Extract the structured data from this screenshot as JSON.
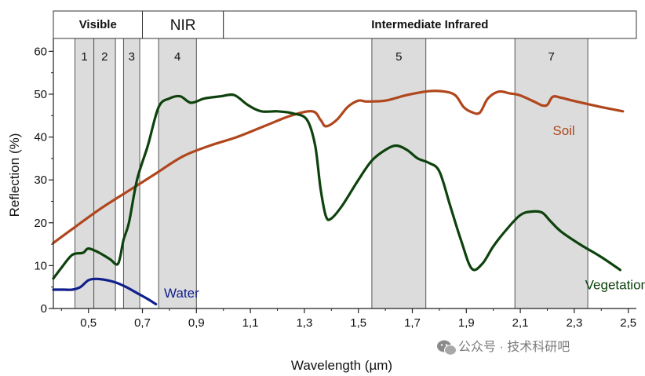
{
  "chart_data": {
    "type": "line",
    "title": "",
    "xlabel": "Wavelength (µm)",
    "ylabel": "Reflection (%)",
    "xlim": [
      0.37,
      2.53
    ],
    "ylim": [
      0,
      63
    ],
    "x_ticks": [
      0.5,
      0.7,
      0.9,
      1.1,
      1.3,
      1.5,
      1.7,
      1.9,
      2.1,
      2.3,
      2.5
    ],
    "x_tick_labels": [
      "0,5",
      "0,7",
      "0,9",
      "1,1",
      "1,3",
      "1,5",
      "1,7",
      "1,9",
      "2,1",
      "2,3",
      "2,5"
    ],
    "y_ticks": [
      0,
      10,
      20,
      30,
      40,
      50,
      60
    ],
    "y_tick_labels": [
      "0",
      "10",
      "20",
      "30",
      "40",
      "50",
      "60"
    ],
    "regions": [
      {
        "label": "Visible",
        "x_start": 0.37,
        "x_end": 0.7,
        "style": "bold"
      },
      {
        "label": "NIR",
        "x_start": 0.7,
        "x_end": 1.0,
        "style": "plain"
      },
      {
        "label": "Intermediate Infrared",
        "x_start": 1.0,
        "x_end": 2.53,
        "style": "bold"
      }
    ],
    "bands": [
      {
        "label": "1",
        "x_start": 0.45,
        "x_end": 0.52
      },
      {
        "label": "2",
        "x_start": 0.52,
        "x_end": 0.6
      },
      {
        "label": "3",
        "x_start": 0.63,
        "x_end": 0.69
      },
      {
        "label": "4",
        "x_start": 0.76,
        "x_end": 0.9
      },
      {
        "label": "5",
        "x_start": 1.55,
        "x_end": 1.75
      },
      {
        "label": "7",
        "x_start": 2.08,
        "x_end": 2.35
      }
    ],
    "series": [
      {
        "name": "Soil",
        "color": "#b0461c",
        "label_at": [
          2.22,
          40.5
        ],
        "x": [
          0.37,
          0.45,
          0.55,
          0.65,
          0.75,
          0.85,
          0.95,
          1.05,
          1.15,
          1.25,
          1.33,
          1.36,
          1.38,
          1.42,
          1.46,
          1.5,
          1.53,
          1.6,
          1.68,
          1.76,
          1.82,
          1.86,
          1.89,
          1.92,
          1.95,
          1.98,
          2.02,
          2.06,
          2.1,
          2.16,
          2.18,
          2.2,
          2.22,
          2.25,
          2.3,
          2.4,
          2.48
        ],
        "y": [
          15.3,
          19.0,
          23.5,
          27.5,
          31.5,
          35.5,
          38.0,
          40.0,
          42.5,
          45.0,
          46.0,
          44.0,
          42.5,
          44.0,
          47.0,
          48.5,
          48.3,
          48.5,
          49.8,
          50.7,
          50.6,
          49.7,
          47.0,
          45.8,
          45.7,
          49.0,
          50.6,
          50.2,
          49.7,
          48.0,
          47.4,
          47.5,
          49.4,
          49.2,
          48.4,
          47.0,
          46.0
        ]
      },
      {
        "name": "Vegetation",
        "color": "#0d420d",
        "label_at": [
          2.34,
          4.5
        ],
        "x": [
          0.37,
          0.4,
          0.44,
          0.48,
          0.5,
          0.54,
          0.58,
          0.61,
          0.63,
          0.65,
          0.68,
          0.72,
          0.76,
          0.8,
          0.84,
          0.88,
          0.93,
          0.99,
          1.04,
          1.09,
          1.14,
          1.2,
          1.26,
          1.31,
          1.34,
          1.36,
          1.38,
          1.4,
          1.44,
          1.5,
          1.55,
          1.6,
          1.64,
          1.68,
          1.72,
          1.76,
          1.8,
          1.84,
          1.88,
          1.92,
          1.96,
          2.0,
          2.05,
          2.1,
          2.14,
          2.18,
          2.21,
          2.25,
          2.32,
          2.4,
          2.47
        ],
        "y": [
          7.0,
          9.5,
          12.5,
          13.0,
          14.0,
          13.0,
          11.5,
          10.5,
          16.0,
          20.0,
          30.0,
          38.0,
          47.0,
          49.0,
          49.5,
          48.0,
          49.0,
          49.5,
          49.8,
          47.5,
          46.0,
          46.0,
          45.5,
          44.0,
          38.0,
          28.0,
          21.5,
          21.0,
          24.0,
          30.0,
          34.5,
          37.0,
          38.0,
          37.0,
          35.0,
          34.0,
          32.0,
          24.0,
          16.0,
          9.3,
          10.5,
          14.5,
          18.5,
          21.8,
          22.6,
          22.4,
          20.5,
          18.0,
          15.0,
          12.0,
          9.0
        ]
      },
      {
        "name": "Water",
        "color": "#101f8c",
        "label_at": [
          0.78,
          2.6
        ],
        "x": [
          0.37,
          0.41,
          0.44,
          0.47,
          0.5,
          0.53,
          0.56,
          0.6,
          0.64,
          0.68,
          0.72,
          0.75
        ],
        "y": [
          4.4,
          4.4,
          4.4,
          5.0,
          6.6,
          6.9,
          6.7,
          6.1,
          5.0,
          3.6,
          2.2,
          1.0
        ]
      }
    ]
  },
  "watermark": {
    "text": "公众号 · 技术科研吧",
    "icon": "wechat-icon"
  }
}
